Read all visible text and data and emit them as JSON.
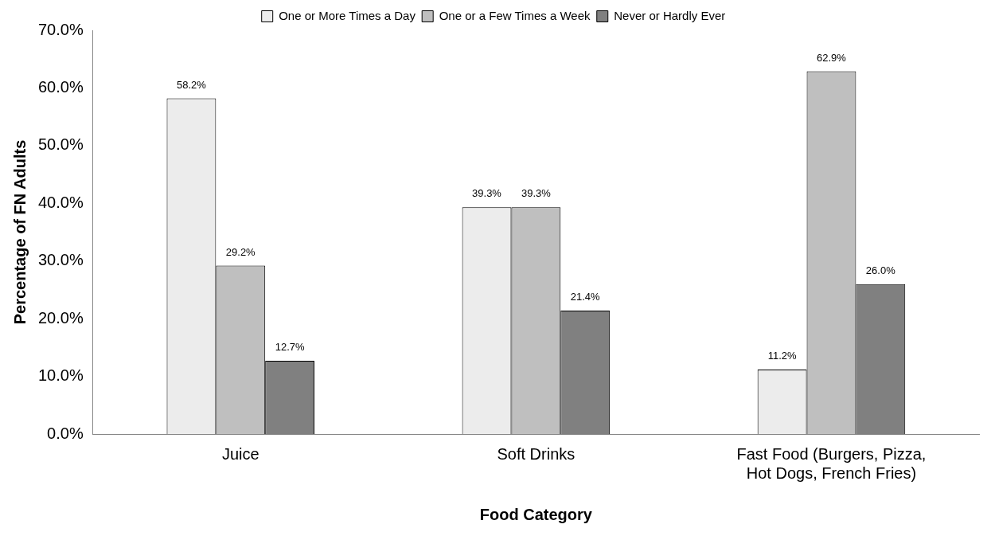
{
  "chart_data": {
    "type": "bar",
    "xlabel": "Food Category",
    "ylabel": "Percentage of FN Adults",
    "categories": [
      "Juice",
      "Soft Drinks",
      "Fast Food (Burgers, Pizza, Hot Dogs, French Fries)"
    ],
    "series": [
      {
        "name": "One or More Times a Day",
        "color": "#ececec",
        "values": [
          58.2,
          39.3,
          11.2
        ],
        "value_labels": [
          "58.2%",
          "39.3%",
          "11.2%"
        ]
      },
      {
        "name": "One or a Few Times a Week",
        "color": "#bfbfbf",
        "values": [
          29.2,
          39.3,
          62.9
        ],
        "value_labels": [
          "29.2%",
          "39.3%",
          "62.9%"
        ]
      },
      {
        "name": "Never or Hardly Ever",
        "color": "#808080",
        "values": [
          12.7,
          21.4,
          26.0
        ],
        "value_labels": [
          "12.7%",
          "21.4%",
          "26.0%"
        ]
      }
    ],
    "ylim": [
      0,
      70
    ],
    "yticks": [
      {
        "value": 0,
        "label": "0.0%"
      },
      {
        "value": 10,
        "label": "10.0%"
      },
      {
        "value": 20,
        "label": "20.0%"
      },
      {
        "value": 30,
        "label": "30.0%"
      },
      {
        "value": 40,
        "label": "40.0%"
      },
      {
        "value": 50,
        "label": "50.0%"
      },
      {
        "value": 60,
        "label": "60.0%"
      },
      {
        "value": 70,
        "label": "70.0%"
      }
    ],
    "grid": false,
    "legend": "top"
  }
}
